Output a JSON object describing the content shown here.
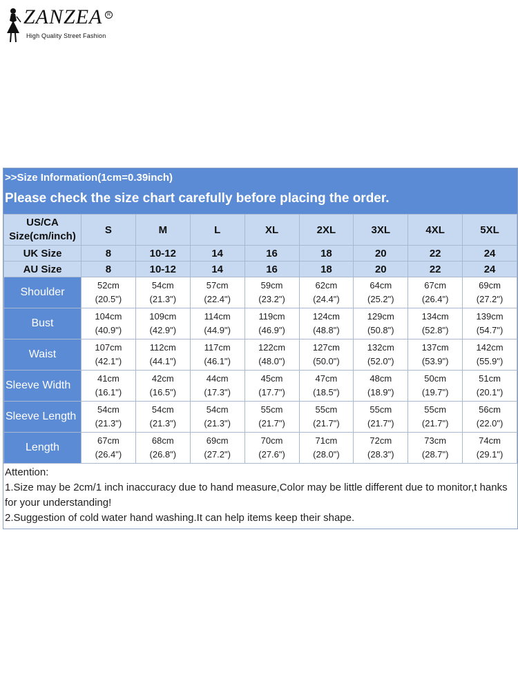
{
  "brand": {
    "name": "ZANZEA",
    "reg_mark": "R",
    "tagline": "High Quality Street Fashion"
  },
  "banner": {
    "line1": ">>Size Information(1cm=0.39inch)",
    "line2": "Please check the size chart carefully before placing the order."
  },
  "table": {
    "corner_line1": "US/CA",
    "corner_line2": "Size(cm/inch)",
    "sizes": [
      "S",
      "M",
      "L",
      "XL",
      "2XL",
      "3XL",
      "4XL",
      "5XL"
    ],
    "uk_label": "UK Size",
    "uk": [
      "8",
      "10-12",
      "14",
      "16",
      "18",
      "20",
      "22",
      "24"
    ],
    "au_label": "AU Size",
    "au": [
      "8",
      "10-12",
      "14",
      "16",
      "18",
      "20",
      "22",
      "24"
    ],
    "rows": [
      {
        "label": "Shoulder",
        "cm": [
          "52cm",
          "54cm",
          "57cm",
          "59cm",
          "62cm",
          "64cm",
          "67cm",
          "69cm"
        ],
        "inch": [
          "(20.5\")",
          "(21.3\")",
          "(22.4\")",
          "(23.2\")",
          "(24.4\")",
          "(25.2\")",
          "(26.4\")",
          "(27.2\")"
        ]
      },
      {
        "label": "Bust",
        "cm": [
          "104cm",
          "109cm",
          "114cm",
          "119cm",
          "124cm",
          "129cm",
          "134cm",
          "139cm"
        ],
        "inch": [
          "(40.9\")",
          "(42.9\")",
          "(44.9\")",
          "(46.9\")",
          "(48.8\")",
          "(50.8\")",
          "(52.8\")",
          "(54.7\")"
        ]
      },
      {
        "label": "Waist",
        "cm": [
          "107cm",
          "112cm",
          "117cm",
          "122cm",
          "127cm",
          "132cm",
          "137cm",
          "142cm"
        ],
        "inch": [
          "(42.1\")",
          "(44.1\")",
          "(46.1\")",
          "(48.0\")",
          "(50.0\")",
          "(52.0\")",
          "(53.9\")",
          "(55.9\")"
        ]
      },
      {
        "label": "Sleeve Width",
        "cm": [
          "41cm",
          "42cm",
          "44cm",
          "45cm",
          "47cm",
          "48cm",
          "50cm",
          "51cm"
        ],
        "inch": [
          "(16.1\")",
          "(16.5\")",
          "(17.3\")",
          "(17.7\")",
          "(18.5\")",
          "(18.9\")",
          "(19.7\")",
          "(20.1\")"
        ]
      },
      {
        "label": "Sleeve Length",
        "cm": [
          "54cm",
          "54cm",
          "54cm",
          "55cm",
          "55cm",
          "55cm",
          "55cm",
          "56cm"
        ],
        "inch": [
          "(21.3\")",
          "(21.3\")",
          "(21.3\")",
          "(21.7\")",
          "(21.7\")",
          "(21.7\")",
          "(21.7\")",
          "(22.0\")"
        ]
      },
      {
        "label": "Length",
        "cm": [
          "67cm",
          "68cm",
          "69cm",
          "70cm",
          "71cm",
          "72cm",
          "73cm",
          "74cm"
        ],
        "inch": [
          "(26.4\")",
          "(26.8\")",
          "(27.2\")",
          "(27.6\")",
          "(28.0\")",
          "(28.3\")",
          "(28.7\")",
          "(29.1\")"
        ]
      }
    ]
  },
  "notes": {
    "heading": "Attention:",
    "item1": "1.Size may be 2cm/1 inch inaccuracy due to hand measure,Color may be little different due to monitor,t hanks for your understanding!",
    "item2": "2.Suggestion of cold water hand washing.It can help items keep their shape."
  },
  "colors": {
    "banner": "#5b8bd4",
    "header_fill": "#c7d9f0",
    "border": "#a9b8cf"
  }
}
